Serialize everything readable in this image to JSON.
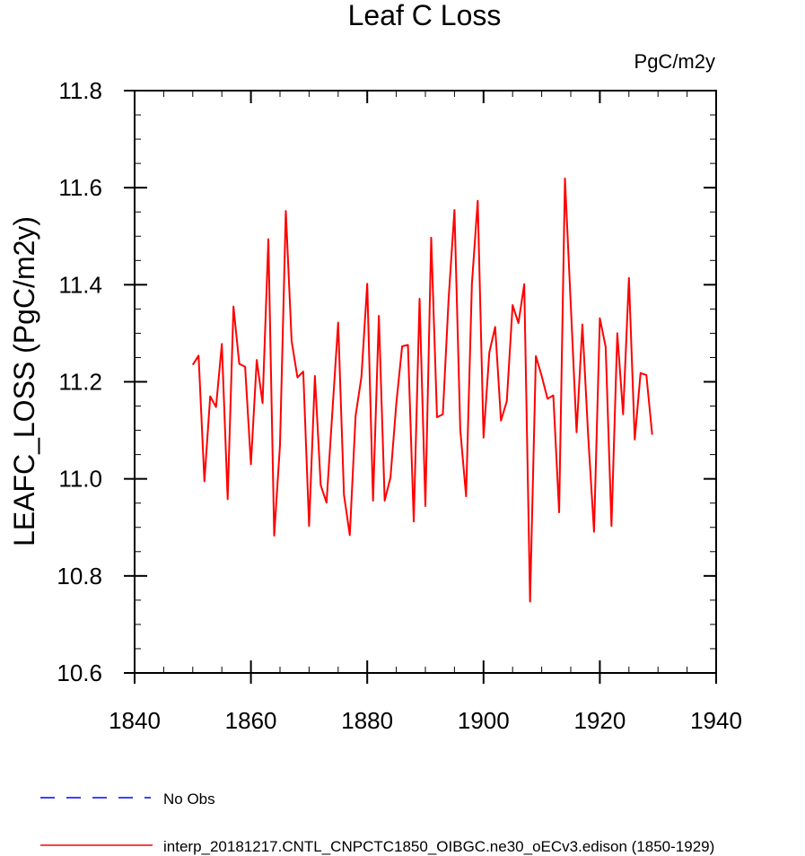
{
  "chart_data": {
    "type": "line",
    "title": "Leaf C Loss",
    "units": "PgC/m2y",
    "xlabel": "",
    "ylabel": "LEAFC_LOSS  (PgC/m2y)",
    "xlim": [
      1840,
      1940
    ],
    "ylim": [
      10.6,
      11.8
    ],
    "xticks": [
      1840,
      1860,
      1880,
      1900,
      1920,
      1940
    ],
    "xtick_labels": [
      "1840",
      "1860",
      "1880",
      "1900",
      "1920",
      "1940"
    ],
    "yticks": [
      10.6,
      10.8,
      11.0,
      11.2,
      11.4,
      11.6,
      11.8
    ],
    "ytick_labels": [
      "10.6",
      "10.8",
      "11.0",
      "11.2",
      "11.4",
      "11.6",
      "11.8"
    ],
    "grid": false,
    "legend_position": "bottom",
    "series": [
      {
        "name": "interp_20181217.CNTL_CNPCTC1850_OIBGC.ne30_oECv3.edison (1850-1929)",
        "color": "#ff0000",
        "style": "solid",
        "x_start": 1850,
        "values": [
          11.235,
          11.254,
          10.995,
          11.17,
          11.148,
          11.278,
          10.958,
          11.355,
          11.237,
          11.231,
          11.03,
          11.245,
          11.156,
          11.494,
          10.883,
          11.07,
          11.552,
          11.284,
          11.209,
          11.221,
          10.903,
          11.212,
          10.987,
          10.951,
          11.137,
          11.322,
          10.967,
          10.884,
          11.13,
          11.21,
          11.402,
          10.955,
          11.336,
          10.955,
          11.003,
          11.155,
          11.273,
          11.276,
          10.912,
          11.371,
          10.944,
          11.497,
          11.127,
          11.133,
          11.372,
          11.554,
          11.101,
          10.964,
          11.402,
          11.573,
          11.085,
          11.261,
          11.313,
          11.12,
          11.16,
          11.358,
          11.321,
          11.401,
          10.747,
          11.253,
          11.212,
          11.165,
          11.172,
          10.931,
          11.619,
          11.359,
          11.096,
          11.318,
          11.087,
          10.891,
          11.331,
          11.272,
          10.903,
          11.3,
          11.133,
          11.414,
          11.081,
          11.218,
          11.214,
          11.091
        ]
      },
      {
        "name": "No Obs",
        "color": "#0000ff",
        "style": "dashed",
        "x_start": 1850,
        "values": []
      }
    ]
  }
}
